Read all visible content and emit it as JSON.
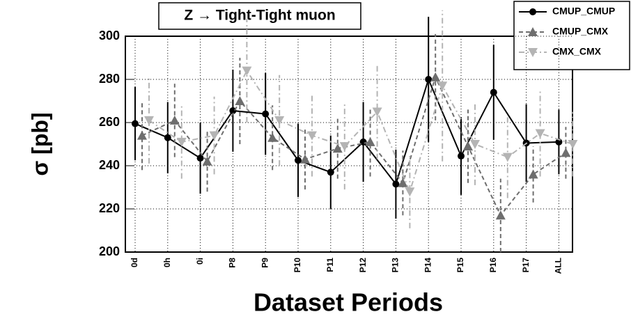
{
  "chart_data": {
    "type": "line",
    "title": "Z → Tight-Tight muon",
    "x_label": "Dataset Periods",
    "y_label": "σ [pb]",
    "categories": [
      "0d",
      "0h",
      "0i",
      "P8",
      "P9",
      "P10",
      "P11",
      "P12",
      "P13",
      "P14",
      "P15",
      "P16",
      "P17",
      "ALL"
    ],
    "ylim": [
      200,
      300
    ],
    "yticks": [
      200,
      220,
      240,
      260,
      280,
      300
    ],
    "grid": true,
    "legend": "top-right",
    "series": [
      {
        "name": "CMUP_CMUP",
        "color": "#000000",
        "values": [
          259.5,
          253,
          243.5,
          265.5,
          264,
          242.5,
          237,
          251,
          231.5,
          280,
          244.5,
          274,
          250.5,
          251
        ],
        "errors": [
          17,
          16.5,
          16.5,
          19,
          19,
          17,
          17,
          18.5,
          16,
          29,
          18,
          22,
          18,
          15
        ]
      },
      {
        "name": "CMUP_CMX",
        "color": "#6e6e6e",
        "values": [
          254,
          261,
          242,
          270,
          253,
          243,
          248,
          251,
          232,
          281,
          249,
          217,
          236,
          246
        ],
        "errors": [
          16,
          17,
          14,
          20,
          15,
          14,
          14,
          16,
          15,
          20,
          17,
          17,
          13,
          12
        ]
      },
      {
        "name": "CMX_CMX",
        "color": "#b4b4b4",
        "values": [
          261,
          251,
          254,
          284,
          261,
          254,
          249,
          265,
          228,
          277,
          250,
          244,
          255,
          250
        ],
        "errors": [
          20,
          17,
          18,
          24,
          21,
          19,
          20,
          22,
          17,
          35,
          19,
          19,
          20,
          15
        ]
      }
    ]
  }
}
